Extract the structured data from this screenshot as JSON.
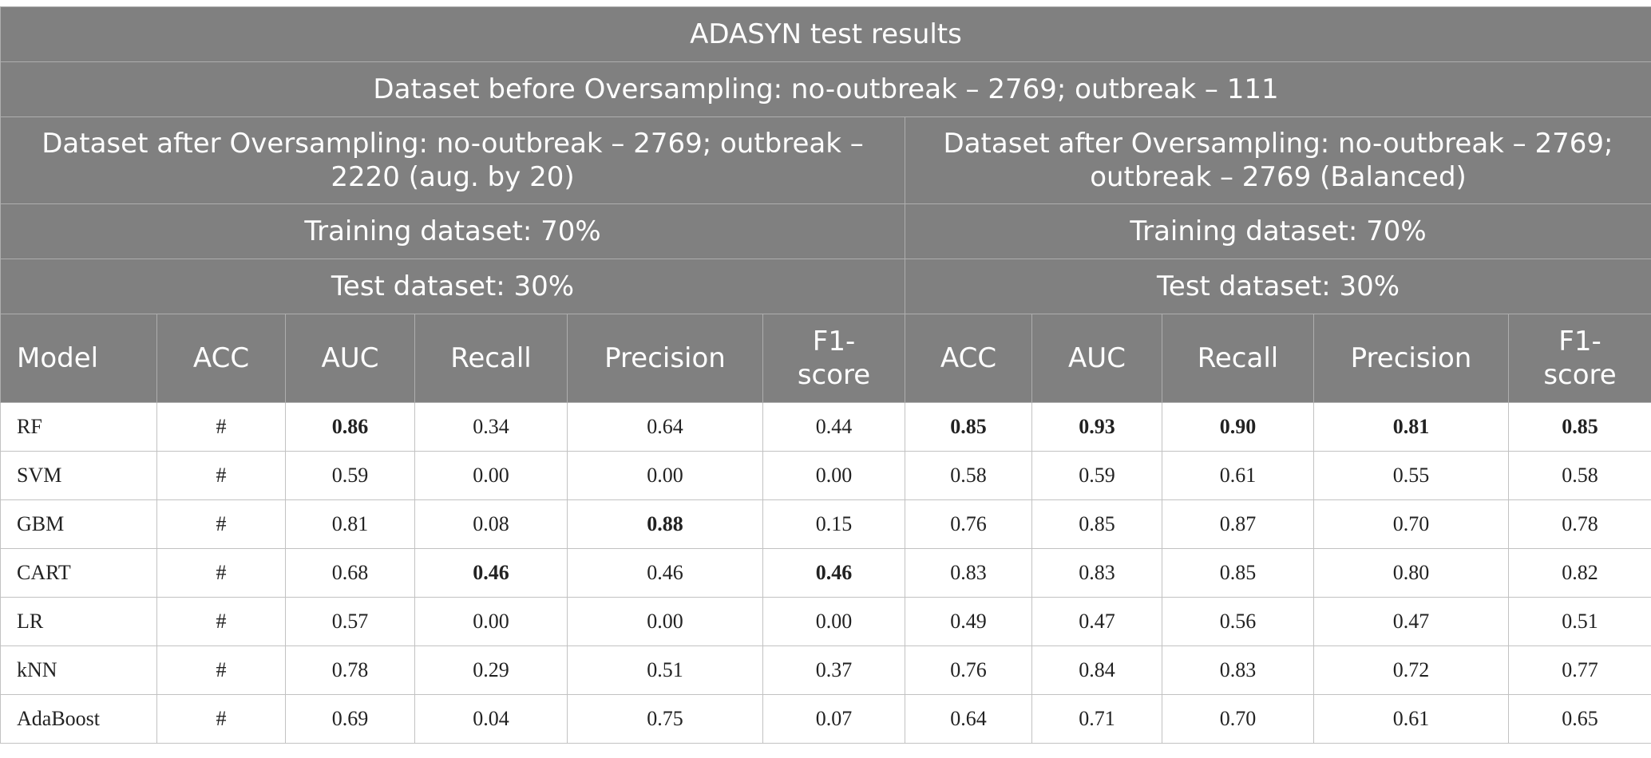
{
  "table": {
    "title": "ADASYN test results",
    "dataset_before": "Dataset before Oversampling: no-outbreak – 2769; outbreak – 111",
    "left_group": {
      "dataset_after": "Dataset after Oversampling: no-outbreak – 2769; outbreak – 2220 (aug. by 20)",
      "training": "Training dataset: 70%",
      "test": "Test dataset: 30%"
    },
    "right_group": {
      "dataset_after": "Dataset after Oversampling: no-outbreak – 2769; outbreak – 2769 (Balanced)",
      "training": "Training dataset: 70%",
      "test": "Test dataset: 30%"
    },
    "columns": [
      "Model",
      "ACC",
      "AUC",
      "Recall",
      "Precision",
      "F1-score",
      "ACC",
      "AUC",
      "Recall",
      "Precision",
      "F1-score"
    ],
    "rows": [
      {
        "cells": [
          "RF",
          "#",
          "0.86",
          "0.34",
          "0.64",
          "0.44",
          "0.85",
          "0.93",
          "0.90",
          "0.81",
          "0.85"
        ],
        "bold": [
          false,
          false,
          true,
          false,
          false,
          false,
          true,
          true,
          true,
          true,
          true
        ]
      },
      {
        "cells": [
          "SVM",
          "#",
          "0.59",
          "0.00",
          "0.00",
          "0.00",
          "0.58",
          "0.59",
          "0.61",
          "0.55",
          "0.58"
        ],
        "bold": [
          false,
          false,
          false,
          false,
          false,
          false,
          false,
          false,
          false,
          false,
          false
        ]
      },
      {
        "cells": [
          "GBM",
          "#",
          "0.81",
          "0.08",
          "0.88",
          "0.15",
          "0.76",
          "0.85",
          "0.87",
          "0.70",
          "0.78"
        ],
        "bold": [
          false,
          false,
          false,
          false,
          true,
          false,
          false,
          false,
          false,
          false,
          false
        ]
      },
      {
        "cells": [
          "CART",
          "#",
          "0.68",
          "0.46",
          "0.46",
          "0.46",
          "0.83",
          "0.83",
          "0.85",
          "0.80",
          "0.82"
        ],
        "bold": [
          false,
          false,
          false,
          true,
          false,
          true,
          false,
          false,
          false,
          false,
          false
        ]
      },
      {
        "cells": [
          "LR",
          "#",
          "0.57",
          "0.00",
          "0.00",
          "0.00",
          "0.49",
          "0.47",
          "0.56",
          "0.47",
          "0.51"
        ],
        "bold": [
          false,
          false,
          false,
          false,
          false,
          false,
          false,
          false,
          false,
          false,
          false
        ]
      },
      {
        "cells": [
          "kNN",
          "#",
          "0.78",
          "0.29",
          "0.51",
          "0.37",
          "0.76",
          "0.84",
          "0.83",
          "0.72",
          "0.77"
        ],
        "bold": [
          false,
          false,
          false,
          false,
          false,
          false,
          false,
          false,
          false,
          false,
          false
        ]
      },
      {
        "cells": [
          "AdaBoost",
          "#",
          "0.69",
          "0.04",
          "0.75",
          "0.07",
          "0.64",
          "0.71",
          "0.70",
          "0.61",
          "0.65"
        ],
        "bold": [
          false,
          false,
          false,
          false,
          false,
          false,
          false,
          false,
          false,
          false,
          false
        ]
      }
    ]
  },
  "colors": {
    "header_bg": "#808080",
    "header_text": "#ffffff",
    "grid": "#b8b8b8"
  }
}
